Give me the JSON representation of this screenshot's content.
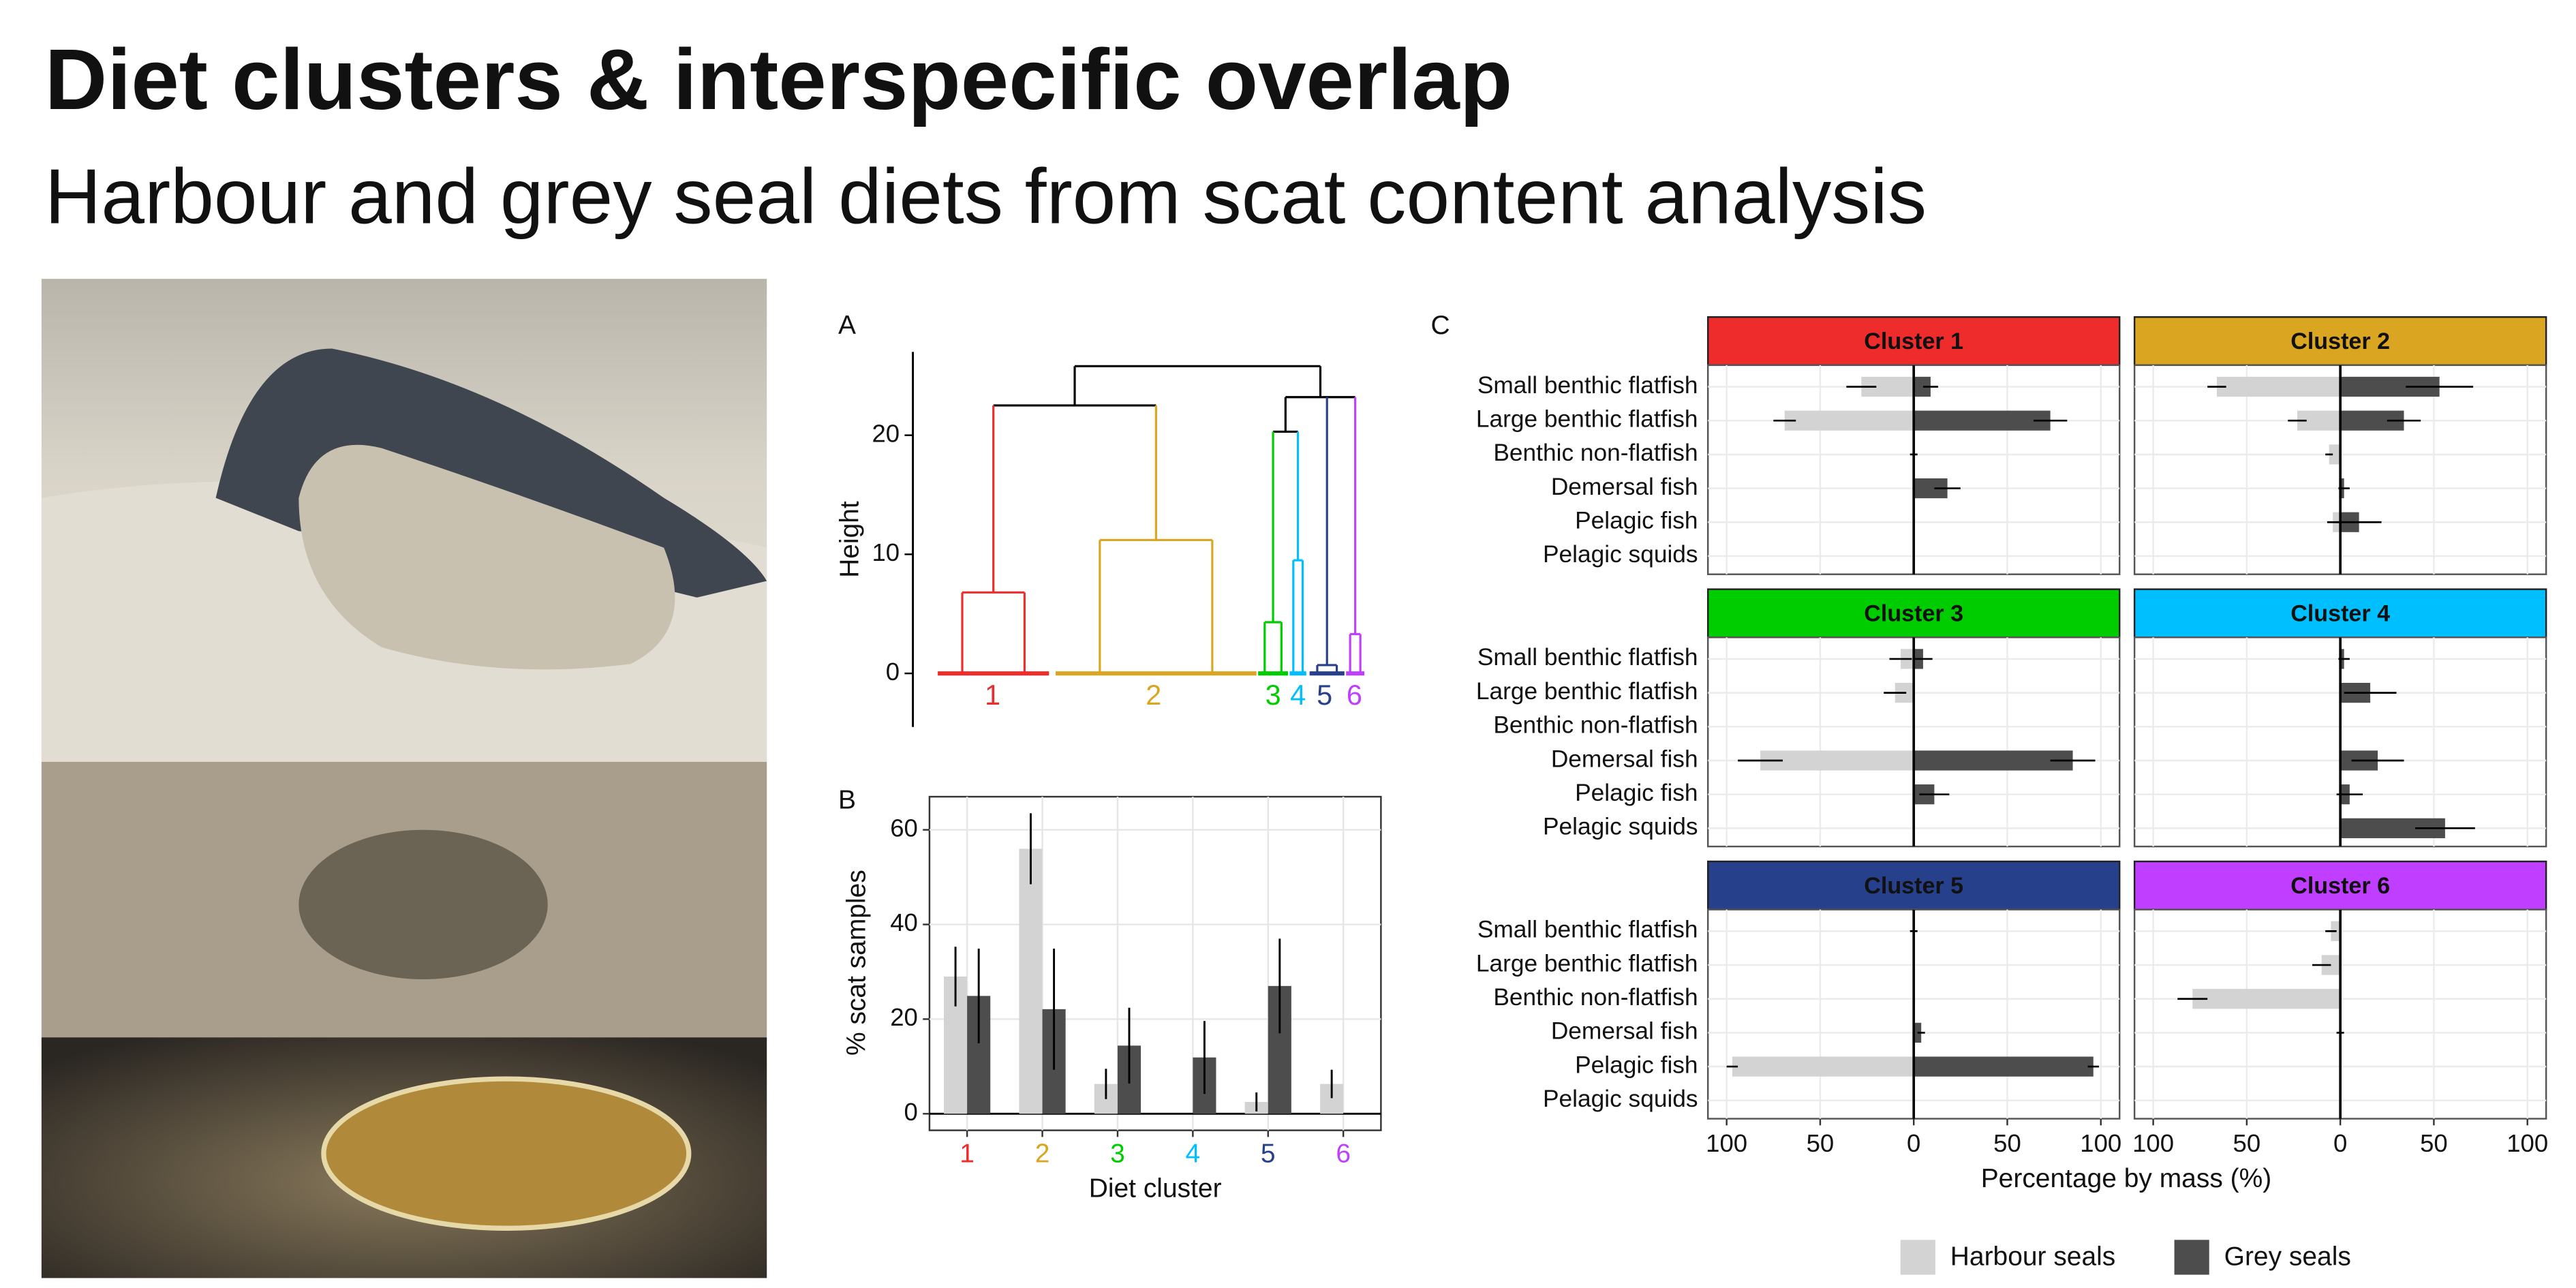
{
  "title": "Diet clusters & interspecific overlap",
  "subtitle": "Harbour and grey seal diets from scat content analysis",
  "chart_data": [
    {
      "type": "dendrogram",
      "panel_label": "A",
      "y_label": "Height",
      "ylim": [
        -4.5,
        27
      ],
      "yticks": [
        0,
        10,
        20
      ],
      "categories": [
        "1",
        "2",
        "3",
        "4",
        "5",
        "6"
      ],
      "colors": [
        "#ee2c2c",
        "#daa520",
        "#00cd00",
        "#00bfff",
        "#27408b",
        "#bf3eff"
      ],
      "tree": {
        "height": 25.8,
        "children": [
          {
            "height": 22.5,
            "children": [
              6.8,
              11.2
            ]
          },
          {
            "height": 23.2,
            "children": [
              {
                "height": 20.3,
                "children": [
                  4.3,
                  9.5
                ]
              },
              0.7,
              3.3
            ]
          }
        ]
      }
    },
    {
      "type": "bar",
      "panel_label": "B",
      "y_label": "% scat samples",
      "x_label": "Diet cluster",
      "ylim": [
        -3.5,
        67
      ],
      "yticks": [
        0,
        20,
        40,
        60
      ],
      "grid": true,
      "categories": [
        "1",
        "2",
        "3",
        "4",
        "5",
        "6"
      ],
      "category_colors": [
        "#ee2c2c",
        "#daa520",
        "#00cd00",
        "#00bfff",
        "#27408b",
        "#bf3eff"
      ],
      "series": [
        {
          "name": "Harbour seals",
          "color": "#d3d3d3",
          "values": [
            29,
            56,
            6.3,
            0,
            2.5,
            6.3
          ],
          "errors": [
            6.3,
            7.5,
            3.2,
            null,
            2,
            3
          ]
        },
        {
          "name": "Grey seals",
          "color": "#4d4d4d",
          "values": [
            24.9,
            22.1,
            14.4,
            11.9,
            27,
            0
          ],
          "errors": [
            10,
            12.8,
            8,
            7.7,
            10,
            null
          ]
        }
      ]
    },
    {
      "type": "facet_bar",
      "panel_label": "C",
      "x_label": "Percentage by mass (%)",
      "xlim": [
        -110,
        110
      ],
      "xticks": [
        {
          "value": -100,
          "label": "100"
        },
        {
          "value": -50,
          "label": "50"
        },
        0,
        50,
        100
      ],
      "grid": true,
      "legend_position": "bottom",
      "categories": [
        "Small benthic flatfish",
        "Large benthic flatfish",
        "Benthic non-flatfish",
        "Demersal fish",
        "Pelagic fish",
        "Pelagic squids"
      ],
      "series": [
        {
          "name": "Harbour seals",
          "color": "#d3d3d3",
          "side": "left"
        },
        {
          "name": "Grey seals",
          "color": "#4d4d4d",
          "side": "right"
        }
      ],
      "panels": [
        {
          "title": "Cluster 1",
          "color": "#ee2c2c",
          "series": [
            {
              "values": [
                28,
                69,
                0,
                0,
                0,
                0
              ],
              "errors": [
                8,
                6,
                2,
                null,
                null,
                null
              ]
            },
            {
              "values": [
                9,
                73,
                0,
                18,
                0,
                0
              ],
              "errors": [
                4,
                9,
                null,
                7,
                null,
                null
              ]
            }
          ]
        },
        {
          "title": "Cluster 2",
          "color": "#daa520",
          "series": [
            {
              "values": [
                66,
                23,
                6,
                0,
                4,
                0
              ],
              "errors": [
                5,
                5,
                2,
                null,
                3,
                null
              ]
            },
            {
              "values": [
                53,
                34,
                0,
                2,
                10,
                0
              ],
              "errors": [
                18,
                9,
                null,
                3,
                12,
                null
              ]
            }
          ]
        },
        {
          "title": "Cluster 3",
          "color": "#00cd00",
          "series": [
            {
              "values": [
                7,
                10,
                0,
                82,
                0,
                0
              ],
              "errors": [
                6,
                6,
                null,
                12,
                null,
                null
              ]
            },
            {
              "values": [
                5,
                0,
                0,
                85,
                11,
                0
              ],
              "errors": [
                5,
                null,
                null,
                12,
                8,
                null
              ]
            }
          ]
        },
        {
          "title": "Cluster 4",
          "color": "#00bfff",
          "series": [
            {
              "values": [
                0,
                0,
                0,
                0,
                0,
                0
              ],
              "errors": [
                null,
                null,
                null,
                null,
                null,
                null
              ]
            },
            {
              "values": [
                2,
                16,
                0,
                20,
                5,
                56
              ],
              "errors": [
                3,
                14,
                null,
                14,
                7,
                16
              ]
            }
          ]
        },
        {
          "title": "Cluster 5",
          "color": "#27408b",
          "series": [
            {
              "values": [
                0,
                0,
                0,
                0,
                97,
                0
              ],
              "errors": [
                2,
                null,
                null,
                null,
                3,
                null
              ]
            },
            {
              "values": [
                0,
                0,
                0,
                4,
                96,
                0
              ],
              "errors": [
                null,
                null,
                null,
                2,
                3,
                null
              ]
            }
          ]
        },
        {
          "title": "Cluster 6",
          "color": "#bf3eff",
          "series": [
            {
              "values": [
                5,
                10,
                79,
                0,
                0,
                0
              ],
              "errors": [
                3,
                5,
                8,
                2,
                null,
                null
              ]
            },
            {
              "values": [
                0,
                0,
                0,
                0,
                0,
                0
              ],
              "errors": [
                null,
                null,
                null,
                null,
                null,
                null
              ]
            }
          ]
        }
      ]
    }
  ]
}
